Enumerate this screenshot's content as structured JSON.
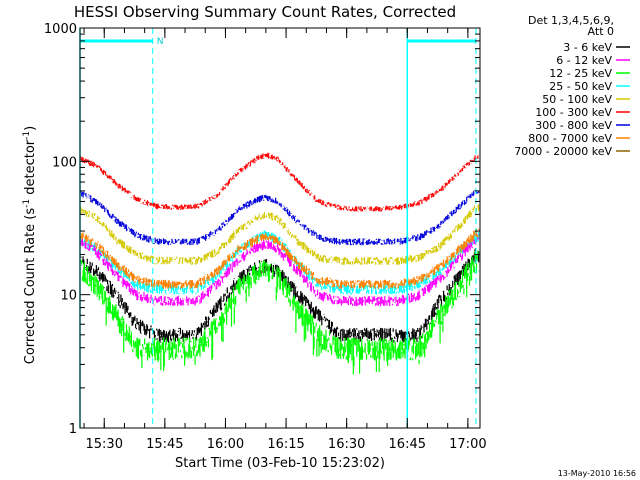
{
  "chart_data": {
    "type": "line",
    "title": "HESSI Observing Summary Count Rates, Corrected",
    "xlabel": "Start Time (03-Feb-10 15:23:02)",
    "ylabel": "Corrected Count Rate (s-1 detector-1)",
    "ylabel_parts": {
      "main": "Corrected Count Rate (s",
      "sup1": "-1",
      "mid": " detector",
      "sup2": "-1",
      "close": ")"
    },
    "yscale": "log",
    "ylim": [
      1,
      1000
    ],
    "y_tick_labels": [
      {
        "value": 1,
        "label": "1"
      },
      {
        "value": 10,
        "label": "10"
      },
      {
        "value": 100,
        "label": "100"
      },
      {
        "value": 1000,
        "label": "1000"
      }
    ],
    "xlim_min": [
      1.0,
      100.0
    ],
    "x_tick_labels": [
      {
        "minute": 7,
        "label": "15:30"
      },
      {
        "minute": 22,
        "label": "15:45"
      },
      {
        "minute": 37,
        "label": "16:00"
      },
      {
        "minute": 52,
        "label": "16:15"
      },
      {
        "minute": 67,
        "label": "16:30"
      },
      {
        "minute": 82,
        "label": "16:45"
      },
      {
        "minute": 97,
        "label": "17:00"
      }
    ],
    "legend_header": [
      "Det 1,3,4,5,6,9,",
      "Att 0"
    ],
    "legend_placement": "right",
    "series": [
      {
        "name": "3 - 6 keV",
        "color": "#000000",
        "x": [
          1,
          5,
          10,
          15,
          20,
          25,
          30,
          35,
          40,
          45,
          47,
          50,
          55,
          60,
          65,
          70,
          75,
          80,
          85,
          90,
          95,
          99
        ],
        "y": [
          18,
          15,
          10,
          6,
          5,
          5,
          5,
          8,
          13,
          16,
          16.5,
          15,
          10,
          7,
          5,
          5,
          5,
          5,
          5,
          9,
          14,
          20
        ]
      },
      {
        "name": "6 - 12 keV",
        "color": "#ff00ff",
        "x": [
          1,
          5,
          10,
          15,
          20,
          25,
          30,
          35,
          40,
          45,
          47,
          50,
          55,
          60,
          65,
          70,
          75,
          80,
          85,
          90,
          95,
          99
        ],
        "y": [
          25,
          21,
          14,
          10,
          9,
          9,
          9,
          12,
          18,
          23,
          24,
          22,
          15,
          10,
          9,
          9,
          9,
          9,
          10,
          13,
          19,
          26
        ]
      },
      {
        "name": "12 - 25 keV",
        "color": "#00ff00",
        "x": [
          1,
          5,
          10,
          15,
          20,
          25,
          30,
          35,
          40,
          45,
          47,
          50,
          55,
          60,
          65,
          70,
          75,
          80,
          85,
          90,
          95,
          99
        ],
        "y": [
          16,
          12,
          7,
          4,
          4,
          4,
          4,
          6,
          11,
          15,
          16,
          14,
          8,
          5,
          4,
          4,
          4,
          4,
          4,
          7,
          12,
          18
        ]
      },
      {
        "name": "25 - 50 keV",
        "color": "#00ffff",
        "x": [
          1,
          5,
          10,
          15,
          20,
          25,
          30,
          35,
          40,
          45,
          47,
          50,
          55,
          60,
          65,
          70,
          75,
          80,
          85,
          90,
          95,
          99
        ],
        "y": [
          26,
          22,
          16,
          12,
          11,
          11,
          11,
          14,
          21,
          27,
          28,
          26,
          17,
          12,
          11,
          11,
          11,
          11,
          12,
          15,
          21,
          27
        ]
      },
      {
        "name": "50 - 100 keV",
        "color": "#d4c800",
        "x": [
          1,
          5,
          10,
          15,
          20,
          25,
          30,
          35,
          40,
          45,
          47,
          50,
          55,
          60,
          65,
          70,
          75,
          80,
          85,
          90,
          95,
          99
        ],
        "y": [
          43,
          38,
          26,
          20,
          18,
          18,
          18,
          21,
          30,
          38,
          40,
          37,
          25,
          19,
          18,
          18,
          18,
          18,
          19,
          23,
          33,
          45
        ]
      },
      {
        "name": "100 - 300 keV",
        "color": "#ff0000",
        "x": [
          1,
          5,
          10,
          15,
          20,
          25,
          30,
          35,
          40,
          45,
          47,
          50,
          55,
          60,
          65,
          70,
          75,
          80,
          85,
          90,
          95,
          99
        ],
        "y": [
          105,
          93,
          68,
          52,
          46,
          45,
          46,
          56,
          82,
          106,
          112,
          104,
          70,
          50,
          45,
          44,
          44,
          45,
          49,
          60,
          84,
          108
        ]
      },
      {
        "name": "300 - 800 keV",
        "color": "#0000dd",
        "x": [
          1,
          5,
          10,
          15,
          20,
          25,
          30,
          35,
          40,
          45,
          47,
          50,
          55,
          60,
          65,
          70,
          75,
          80,
          85,
          90,
          95,
          99
        ],
        "y": [
          58,
          50,
          36,
          28,
          25,
          25,
          25,
          30,
          43,
          52,
          54,
          50,
          35,
          27,
          25,
          25,
          25,
          25,
          27,
          33,
          46,
          60
        ]
      },
      {
        "name": "800 - 7000 keV",
        "color": "#ff8000",
        "x": [
          1,
          5,
          10,
          15,
          20,
          25,
          30,
          35,
          40,
          45,
          47,
          50,
          55,
          60,
          65,
          70,
          75,
          80,
          85,
          90,
          95,
          99
        ],
        "y": [
          28,
          24,
          17,
          13,
          12,
          12,
          12,
          15,
          22,
          26,
          27,
          25,
          17,
          13,
          12,
          12,
          12,
          12,
          13,
          16,
          22,
          29
        ]
      },
      {
        "name": "7000 - 20000 keV",
        "color": "#8b6400",
        "x": [],
        "y": []
      }
    ],
    "annotations": {
      "attenuator_bars": [
        {
          "start": 1,
          "end": 19
        },
        {
          "start": 82,
          "end": 99
        }
      ],
      "night_markers": [
        {
          "minute": 19,
          "label": "N"
        },
        {
          "minute": 99,
          "label": ""
        }
      ],
      "day_markers": [
        {
          "minute": 1
        },
        {
          "minute": 82
        }
      ]
    },
    "footer_date": "13-May-2010 16:56"
  }
}
